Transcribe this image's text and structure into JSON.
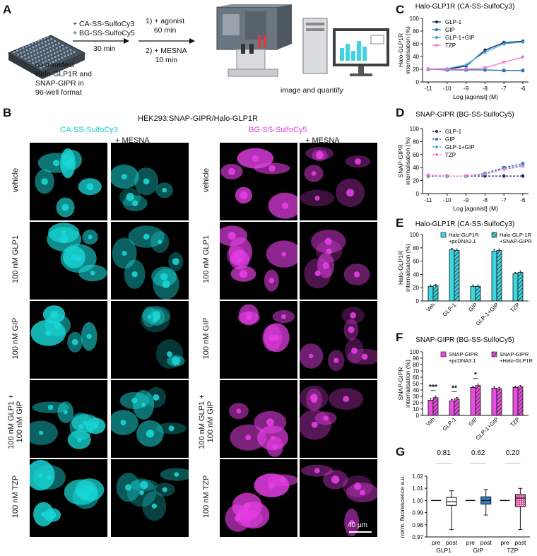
{
  "panel_letters": [
    "A",
    "B",
    "C",
    "D",
    "E",
    "F",
    "G"
  ],
  "panelA": {
    "reagents": [
      "+ CA-SS-SulfoCy3",
      "+ BG-SS-SulfoCy5"
    ],
    "time1": "30 min",
    "cotransfect": [
      "co-transfect",
      "Halo-GLP1R and",
      "SNAP-GIPR in",
      "96-well format"
    ],
    "step1": [
      "1) + agonist",
      "60 min"
    ],
    "step2": [
      "2) + MESNA",
      "10 min"
    ],
    "image_label": "image and quantify"
  },
  "panelB": {
    "header": "HEK293:SNAP-GIPR/Halo-GLP1R",
    "col_cy3": "CA-SS-SulfoCy3",
    "col_cy5": "BG-SS-SulfoCy5",
    "mesna": "+ MESNA",
    "rows": [
      "vehicle",
      "100 nM GLP1",
      "100 nM GIP",
      "100 nM GLP1 + 100 nM GIP",
      "100 nM TZP"
    ],
    "scalebar": "40 µm",
    "colors": {
      "cy3": "#19d6d6",
      "cy5": "#e63ee6"
    }
  },
  "chart_data": [
    {
      "id": "C",
      "type": "line",
      "title": "Halo-GLP1R (CA-SS-SulfoCy3)",
      "xlabel": "Log [agonist] (M)",
      "ylabel": "Halo-GLP1R internalisation (%)",
      "x": [
        -11,
        -10,
        -9,
        -8,
        -7,
        -6
      ],
      "xlim": [
        -11.3,
        -5.7
      ],
      "ylim": [
        0,
        100
      ],
      "yticks": [
        0,
        20,
        40,
        60,
        80,
        100
      ],
      "series": [
        {
          "name": "GLP-1",
          "color": "#1b2a5e",
          "values": [
            20,
            20,
            25,
            50,
            62,
            64
          ]
        },
        {
          "name": "GIP",
          "color": "#2a6fb5",
          "values": [
            20,
            19,
            19,
            19,
            18,
            18
          ]
        },
        {
          "name": "GLP-1+GIP",
          "color": "#3aa8d8",
          "values": [
            20,
            21,
            27,
            47,
            60,
            63
          ]
        },
        {
          "name": "TZP",
          "color": "#f07ad0",
          "values": [
            20,
            20,
            20,
            22,
            31,
            39
          ]
        }
      ]
    },
    {
      "id": "D",
      "type": "line",
      "title": "SNAP-GIPR (BG-SS-SulfoCy5)",
      "xlabel": "Log [agonist] (M)",
      "ylabel": "SNAP-GIPR internalisation (%)",
      "x": [
        -11,
        -10,
        -9,
        -8,
        -7,
        -6
      ],
      "xlim": [
        -11.3,
        -5.7
      ],
      "ylim": [
        0,
        100
      ],
      "yticks": [
        0,
        20,
        40,
        60,
        80,
        100
      ],
      "series": [
        {
          "name": "GLP-1",
          "color": "#1b2a5e",
          "values": [
            27,
            27,
            27,
            27,
            27,
            27
          ]
        },
        {
          "name": "GIP",
          "color": "#2a6fb5",
          "values": [
            28,
            27,
            27,
            31,
            40,
            46
          ]
        },
        {
          "name": "GLP-1+GIP",
          "color": "#3aa8d8",
          "values": [
            28,
            27,
            27,
            30,
            39,
            43
          ]
        },
        {
          "name": "TZP",
          "color": "#f07ad0",
          "values": [
            28,
            27,
            27,
            30,
            37,
            42
          ]
        }
      ]
    },
    {
      "id": "E",
      "type": "bar",
      "title": "Halo-GLP1R (CA-SS-SulfoCy3)",
      "ylabel": "Halo-GLP1R internalisation (%)",
      "categories": [
        "Veh",
        "GLP-1",
        "GIP",
        "GLP-1+GIP",
        "TZP"
      ],
      "ylim": [
        0,
        100
      ],
      "yticks": [
        0,
        20,
        40,
        60,
        80,
        100
      ],
      "color": "#3dd6e0",
      "series": [
        {
          "name": "Halo-GLP1R +pcDNA3.1",
          "hatched": false,
          "values": [
            22,
            77,
            22,
            75,
            41
          ]
        },
        {
          "name": "Halo-GLP-1R +SNAP-GIPR",
          "hatched": true,
          "values": [
            23,
            76,
            22,
            76,
            43
          ]
        }
      ]
    },
    {
      "id": "F",
      "type": "bar",
      "title": "SNAP-GIPR (BG-SS-SulfoCy5)",
      "ylabel": "SNAP-GIPR internalisation (%)",
      "categories": [
        "Veh",
        "GLP-1",
        "GIP",
        "GLP-1+GIP",
        "TZP"
      ],
      "ylim": [
        0,
        100
      ],
      "yticks": [
        0,
        10,
        20,
        30,
        40,
        50,
        60,
        70,
        80,
        90,
        100
      ],
      "color": "#e84ee0",
      "significance": [
        "***",
        "**",
        "*",
        "",
        ""
      ],
      "series": [
        {
          "name": "SNAP-GIPR +pcDNA3.1",
          "hatched": false,
          "values": [
            24,
            23,
            44,
            43,
            44
          ]
        },
        {
          "name": "SNAP-GIPR +Halo-GLP1R",
          "hatched": true,
          "values": [
            28,
            26,
            47,
            42,
            45
          ]
        }
      ]
    },
    {
      "id": "G",
      "type": "box",
      "ylabel": "norm. fluorescence a.u.",
      "ylim": [
        0.97,
        1.02
      ],
      "yticks": [
        "0.97",
        "0.98",
        "0.99",
        "1.00",
        "1.01",
        "1.02"
      ],
      "groups": [
        "GLP1",
        "GIP",
        "TZP"
      ],
      "sublabels": [
        "pre",
        "post"
      ],
      "pvalues": [
        "0.81",
        "0.62",
        "0.20"
      ],
      "boxes": [
        {
          "group": "GLP1",
          "fill": "#ffffff",
          "pattern": "none",
          "min": 0.976,
          "q1": 0.996,
          "median": 0.999,
          "q3": 1.0025,
          "max": 1.008
        },
        {
          "group": "GIP",
          "fill": "#2b7bc0",
          "pattern": "none",
          "min": 0.988,
          "q1": 0.997,
          "median": 1.0,
          "q3": 1.003,
          "max": 1.009
        },
        {
          "group": "TZP",
          "fill": "#e45aa8",
          "pattern": "dots",
          "min": 0.976,
          "q1": 0.995,
          "median": 1.002,
          "q3": 1.005,
          "max": 1.01
        }
      ]
    }
  ]
}
